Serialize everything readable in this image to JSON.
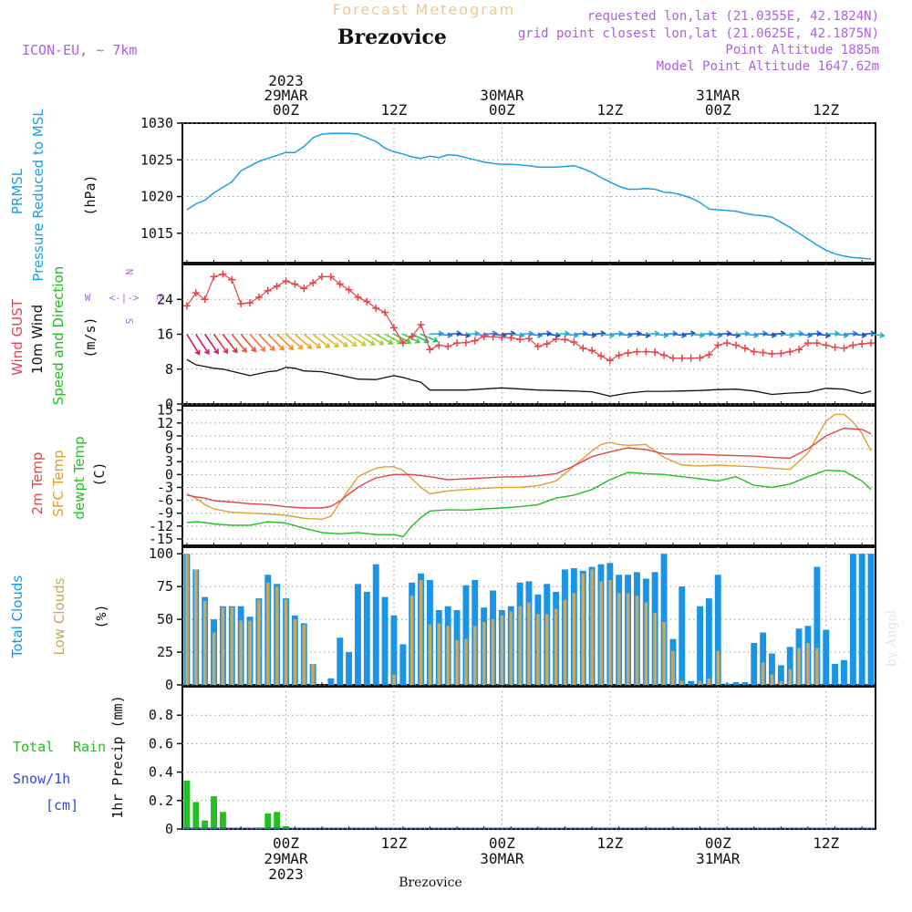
{
  "header": {
    "product_title": "Forecast Meteogram",
    "station": "Brezovice",
    "model": "ICON-EU, ~ 7km",
    "requested": "requested lon,lat (21.0355E, 42.1824N)",
    "grid_point": "grid point closest lon,lat (21.0625E, 42.1875N)",
    "point_altitude": "Point Altitude 1885m",
    "model_altitude": "Model Point Altitude 1647.62m",
    "footer_station": "Brezovice",
    "watermark": "by Angel"
  },
  "time_axis": {
    "top_labels": [
      {
        "lines": [
          "2023",
          "29MAR",
          "00Z"
        ],
        "hour": 0
      },
      {
        "lines": [
          "12Z"
        ],
        "hour": 12
      },
      {
        "lines": [
          "30MAR",
          "00Z"
        ],
        "hour": 24
      },
      {
        "lines": [
          "12Z"
        ],
        "hour": 36
      },
      {
        "lines": [
          "31MAR",
          "00Z"
        ],
        "hour": 48
      },
      {
        "lines": [
          "12Z"
        ],
        "hour": 60
      }
    ],
    "bottom_labels": [
      {
        "lines": [
          "00Z",
          "29MAR",
          "2023"
        ],
        "hour": 0
      },
      {
        "lines": [
          "12Z"
        ],
        "hour": 12
      },
      {
        "lines": [
          "00Z",
          "30MAR"
        ],
        "hour": 24
      },
      {
        "lines": [
          "12Z"
        ],
        "hour": 36
      },
      {
        "lines": [
          "00Z",
          "31MAR"
        ],
        "hour": 48
      },
      {
        "lines": [
          "12Z"
        ],
        "hour": 60
      }
    ],
    "range_hours": [
      -11.5,
      65.5
    ]
  },
  "panel_labels": {
    "pressure": [
      "PRMSL",
      "Pressure Reduced to MSL",
      "(hPa)"
    ],
    "wind": [
      "Wind GUST",
      "10m Wind",
      "Speed and Direction",
      "(m/s)"
    ],
    "compass": {
      "n": "N",
      "s": "S",
      "w": "W",
      "e": "E",
      "arrows": "<-|->"
    },
    "temp": [
      "2m Temp",
      "SFC Temp",
      "dewpt Temp",
      "(C)"
    ],
    "clouds": [
      "Total Clouds",
      "Low Clouds",
      "(%)"
    ],
    "precip": [
      "Total",
      "Rain",
      "Snow/1h",
      "[cm]",
      "1hr Precip (mm)"
    ]
  },
  "colors": {
    "pressure": "#1ba1e2",
    "gust": "#e8424a",
    "wind": "#111111",
    "t2m": "#e8424a",
    "tsfc": "#e0a030",
    "dewpt": "#22c022",
    "cloud_total": "#1a95e6",
    "cloud_low": "#c8a860",
    "rain": "#22c022",
    "snow": "#3344ee",
    "label_purple": "#b060e0",
    "title_orange": "#f0c890"
  },
  "chart_data": [
    {
      "type": "line",
      "title": "PRMSL",
      "ylabel": "(hPa)",
      "ylim": [
        1011,
        1030
      ],
      "yticks": [
        1015,
        1020,
        1025,
        1030
      ],
      "series": [
        {
          "name": "PRMSL",
          "x": [
            -11,
            -10,
            -9,
            -8,
            -6,
            -5,
            -3,
            -1,
            0,
            1,
            2,
            3,
            4,
            5,
            6,
            7,
            8,
            9,
            10,
            11,
            12,
            13,
            14,
            15,
            16,
            17,
            18,
            19,
            20,
            21,
            22,
            23,
            24,
            25,
            26,
            27,
            28,
            29,
            30,
            31,
            32,
            33,
            34,
            35,
            36,
            37,
            38,
            39,
            40,
            41,
            42,
            43,
            44,
            45,
            46,
            47,
            48,
            49,
            50,
            51,
            52,
            53,
            54,
            55,
            56,
            57,
            58,
            59,
            60,
            61,
            62,
            63,
            64,
            65
          ],
          "values": [
            1018.2,
            1019,
            1019.5,
            1020.5,
            1022,
            1023.5,
            1024.8,
            1025.6,
            1026,
            1026,
            1026.8,
            1028,
            1028.5,
            1028.6,
            1028.6,
            1028.6,
            1028.5,
            1028,
            1027.5,
            1026.6,
            1026.1,
            1025.8,
            1025.4,
            1025.2,
            1025.5,
            1025.3,
            1025.7,
            1025.6,
            1025.3,
            1025,
            1024.7,
            1024.5,
            1024.4,
            1024.4,
            1024.3,
            1024.2,
            1024,
            1024,
            1024,
            1024.1,
            1024.2,
            1023.8,
            1023.3,
            1022.6,
            1022,
            1021.4,
            1021,
            1021,
            1021.1,
            1021,
            1020.6,
            1020.5,
            1020.2,
            1019.8,
            1019.2,
            1018.3,
            1018.2,
            1018.1,
            1018,
            1017.7,
            1017.5,
            1017.4,
            1017.2,
            1016.5,
            1015.8,
            1015,
            1014.2,
            1013.4,
            1012.7,
            1012.2,
            1011.9,
            1011.7,
            1011.6,
            1011.5
          ]
        }
      ]
    },
    {
      "type": "line",
      "title": "Wind GUST / 10m Wind Speed and Direction",
      "ylabel": "(m/s)",
      "ylim": [
        0,
        32
      ],
      "yticks": [
        0,
        8,
        16,
        24
      ],
      "series": [
        {
          "name": "Wind GUST",
          "x": [
            -11,
            -10,
            -9,
            -8,
            -7,
            -6,
            -5,
            -4,
            -3,
            -2,
            -1,
            0,
            1,
            2,
            3,
            4,
            5,
            6,
            7,
            8,
            9,
            10,
            11,
            12,
            13,
            14,
            15,
            16,
            17,
            18,
            19,
            20,
            21,
            22,
            23,
            24,
            25,
            26,
            27,
            28,
            29,
            30,
            31,
            32,
            33,
            34,
            35,
            36,
            37,
            38,
            39,
            40,
            41,
            42,
            43,
            44,
            45,
            46,
            47,
            48,
            49,
            50,
            51,
            52,
            53,
            54,
            55,
            56,
            57,
            58,
            59,
            60,
            61,
            62,
            63,
            64,
            65
          ],
          "values": [
            22.5,
            25.5,
            24,
            29.2,
            29.8,
            28.5,
            23,
            23.2,
            24.5,
            26,
            27,
            28.2,
            27.5,
            26.5,
            27.8,
            29.2,
            29.2,
            27.5,
            26.2,
            24.5,
            23.5,
            22,
            21,
            17.5,
            14,
            15.5,
            18.2,
            12.5,
            13.5,
            13.2,
            14,
            14.1,
            14.5,
            15.5,
            15.4,
            15.3,
            15.2,
            14.8,
            15.0,
            13.2,
            13.8,
            14.9,
            14.8,
            14.2,
            12.8,
            12.3,
            11,
            10,
            11.2,
            11.7,
            12,
            12,
            11.9,
            11.2,
            10.5,
            10.5,
            10.5,
            10.6,
            11.3,
            13.5,
            14,
            13.5,
            12.8,
            12,
            11.8,
            11.5,
            11.6,
            12,
            12.5,
            14,
            14,
            13.5,
            13,
            12.8,
            13.5,
            13.8,
            14
          ]
        },
        {
          "name": "10m Wind",
          "x": [
            -11,
            -10,
            -9,
            -8,
            -7,
            -6,
            -4,
            -2,
            -1,
            0,
            1,
            2,
            4,
            6,
            8,
            10,
            12,
            13,
            14,
            15,
            16,
            20,
            24,
            28,
            32,
            34,
            36,
            38,
            40,
            42,
            44,
            46,
            48,
            50,
            52,
            54,
            56,
            58,
            60,
            62,
            64,
            65
          ],
          "values": [
            10.2,
            9,
            8.6,
            8.2,
            8.0,
            7.5,
            6.5,
            7.4,
            7.6,
            8.4,
            8.2,
            7.6,
            7.4,
            6.6,
            5.7,
            5.6,
            6.5,
            6.1,
            5.5,
            5.0,
            3.2,
            3.2,
            3.7,
            3.2,
            3.0,
            2.8,
            1.8,
            2.5,
            2.9,
            2.9,
            3.0,
            3.1,
            3.3,
            3.4,
            3.0,
            2.2,
            2.5,
            2.7,
            3.6,
            3.4,
            2.4,
            3.0
          ]
        }
      ],
      "direction_barbs": "hourly wind arrows along the 16 m/s line, colour coded by speed (magenta/red/orange early, yellow/green around 12Z 29MAR, cyan/blue afterwards)"
    },
    {
      "type": "line",
      "title": "2m Temp / SFC Temp / dewpt Temp",
      "ylabel": "(C)",
      "ylim": [
        -16.5,
        16
      ],
      "yticks": [
        -15,
        -12,
        -9,
        -6,
        -3,
        0,
        3,
        6,
        9,
        12,
        15
      ],
      "series": [
        {
          "name": "2m Temp",
          "x": [
            -11,
            -10,
            -9,
            -8,
            -6,
            -4,
            -2,
            0,
            2,
            4,
            5,
            6,
            7,
            8,
            9,
            10,
            12,
            14,
            16,
            18,
            20,
            22,
            24,
            26,
            28,
            30,
            32,
            34,
            36,
            38,
            40,
            42,
            44,
            46,
            48,
            50,
            52,
            54,
            56,
            58,
            60,
            62,
            64,
            65
          ],
          "values": [
            -4.8,
            -5.2,
            -5.5,
            -6.1,
            -6.4,
            -6.8,
            -7.0,
            -7.5,
            -7.8,
            -7.8,
            -7.4,
            -6.2,
            -4.5,
            -3,
            -1.8,
            -0.8,
            0,
            0,
            -0.5,
            -1.2,
            -1.0,
            -0.8,
            -0.6,
            -0.5,
            -0.3,
            0.2,
            2,
            4.2,
            5.3,
            6.2,
            5.8,
            4.8,
            4.7,
            4.7,
            4.5,
            4.4,
            4.3,
            4.0,
            3.8,
            6,
            9,
            10.8,
            10.5,
            9.5
          ]
        },
        {
          "name": "SFC Temp",
          "x": [
            -11,
            -10,
            -9,
            -8,
            -6,
            -4,
            -2,
            0,
            2,
            4,
            5,
            6,
            7,
            8,
            9,
            10,
            11,
            12,
            13,
            14,
            15,
            16,
            18,
            20,
            22,
            24,
            26,
            28,
            30,
            32,
            34,
            35,
            36,
            37,
            38,
            40,
            42,
            44,
            46,
            48,
            50,
            52,
            54,
            56,
            58,
            60,
            61,
            62,
            63,
            64,
            65
          ],
          "values": [
            -4.5,
            -5.5,
            -7,
            -8,
            -8.8,
            -9,
            -9.2,
            -9.5,
            -10.2,
            -10.4,
            -9.7,
            -6.5,
            -3.5,
            -0.5,
            0.5,
            1.5,
            1.8,
            1.8,
            1,
            -1,
            -3,
            -4.5,
            -3.8,
            -3.5,
            -3.2,
            -3.0,
            -3,
            -2.6,
            -1.5,
            2,
            5.5,
            7,
            7.5,
            7.0,
            6.8,
            7.0,
            4,
            2.2,
            2,
            2.2,
            2,
            1.8,
            1.5,
            1.2,
            5,
            12.5,
            14,
            14,
            12.3,
            9.5,
            5.5
          ]
        },
        {
          "name": "dewpt Temp",
          "x": [
            -11,
            -10,
            -9,
            -8,
            -6,
            -4,
            -2,
            0,
            2,
            4,
            6,
            8,
            10,
            12,
            13,
            14,
            15,
            16,
            18,
            20,
            22,
            24,
            26,
            28,
            30,
            32,
            34,
            36,
            38,
            40,
            42,
            44,
            46,
            48,
            50,
            52,
            54,
            56,
            58,
            60,
            62,
            64,
            65
          ],
          "values": [
            -11.2,
            -11,
            -11.2,
            -11.5,
            -11.8,
            -11.8,
            -11,
            -11.3,
            -12.5,
            -13.5,
            -13.8,
            -13.5,
            -14,
            -14,
            -14.5,
            -12,
            -10,
            -8.5,
            -8.2,
            -8.3,
            -8.0,
            -7.8,
            -7.5,
            -7.0,
            -5.5,
            -4.8,
            -3.5,
            -1.2,
            0.5,
            0.2,
            0,
            -0.5,
            -1,
            -1.5,
            -0.5,
            -2.5,
            -3,
            -2.2,
            -0.5,
            1,
            0.8,
            -1.5,
            -3.5
          ]
        }
      ]
    },
    {
      "type": "bar",
      "title": "Total Clouds / Low Clouds",
      "ylabel": "(%)",
      "ylim": [
        0,
        105
      ],
      "yticks": [
        0,
        25,
        50,
        75,
        100
      ],
      "x": [
        -11,
        -10,
        -9,
        -8,
        -7,
        -6,
        -5,
        -4,
        -3,
        -2,
        -1,
        0,
        1,
        2,
        3,
        4,
        5,
        6,
        7,
        8,
        9,
        10,
        11,
        12,
        13,
        14,
        15,
        16,
        17,
        18,
        19,
        20,
        21,
        22,
        23,
        24,
        25,
        26,
        27,
        28,
        29,
        30,
        31,
        32,
        33,
        34,
        35,
        36,
        37,
        38,
        39,
        40,
        41,
        42,
        43,
        44,
        45,
        46,
        47,
        48,
        49,
        50,
        51,
        52,
        53,
        54,
        55,
        56,
        57,
        58,
        59,
        60,
        61,
        62,
        63,
        64,
        65
      ],
      "series": [
        {
          "name": "Total Clouds",
          "values": [
            100,
            88,
            67,
            50,
            60,
            60,
            60,
            52,
            66,
            84,
            77,
            66,
            53,
            47,
            16,
            0,
            5,
            36,
            25,
            77,
            71,
            92,
            67,
            53,
            31,
            78,
            85,
            80,
            57,
            60,
            57,
            76,
            80,
            59,
            72,
            57,
            60,
            78,
            79,
            69,
            77,
            71,
            88,
            89,
            87,
            90,
            92,
            93,
            84,
            84,
            86,
            81,
            86,
            100,
            35,
            75,
            3,
            60,
            66,
            84,
            1,
            2,
            2,
            32,
            40,
            24,
            15,
            29,
            43,
            45,
            90,
            42,
            16,
            19,
            100,
            100,
            100
          ]
        },
        {
          "name": "Low Clouds",
          "values": [
            100,
            88,
            64,
            40,
            59,
            59,
            49,
            49,
            65,
            78,
            75,
            65,
            50,
            46,
            16,
            0,
            0,
            0,
            0,
            0,
            0,
            0,
            0,
            8,
            0,
            68,
            80,
            46,
            47,
            45,
            34,
            35,
            45,
            48,
            50,
            53,
            56,
            60,
            63,
            54,
            54,
            58,
            65,
            70,
            85,
            88,
            79,
            80,
            70,
            70,
            68,
            63,
            55,
            48,
            26,
            3,
            0,
            3,
            5,
            26,
            0,
            0,
            0,
            0,
            17,
            8,
            3,
            12,
            28,
            32,
            28,
            0,
            0,
            0,
            0,
            0,
            0
          ]
        }
      ]
    },
    {
      "type": "bar",
      "title": "Total Rain / Snow/1h",
      "ylabel": "1hr Precip (mm)",
      "ylim": [
        0,
        1
      ],
      "yticks": [
        0,
        0.2,
        0.4,
        0.6,
        0.8
      ],
      "x": [
        -11,
        -10,
        -9,
        -8,
        -7,
        -6,
        -3,
        -2,
        -1,
        0
      ],
      "series": [
        {
          "name": "Total Rain",
          "values": [
            0.34,
            0.19,
            0.06,
            0.23,
            0.12,
            0.0,
            0.01,
            0.11,
            0.12,
            0.02
          ]
        }
      ]
    }
  ]
}
